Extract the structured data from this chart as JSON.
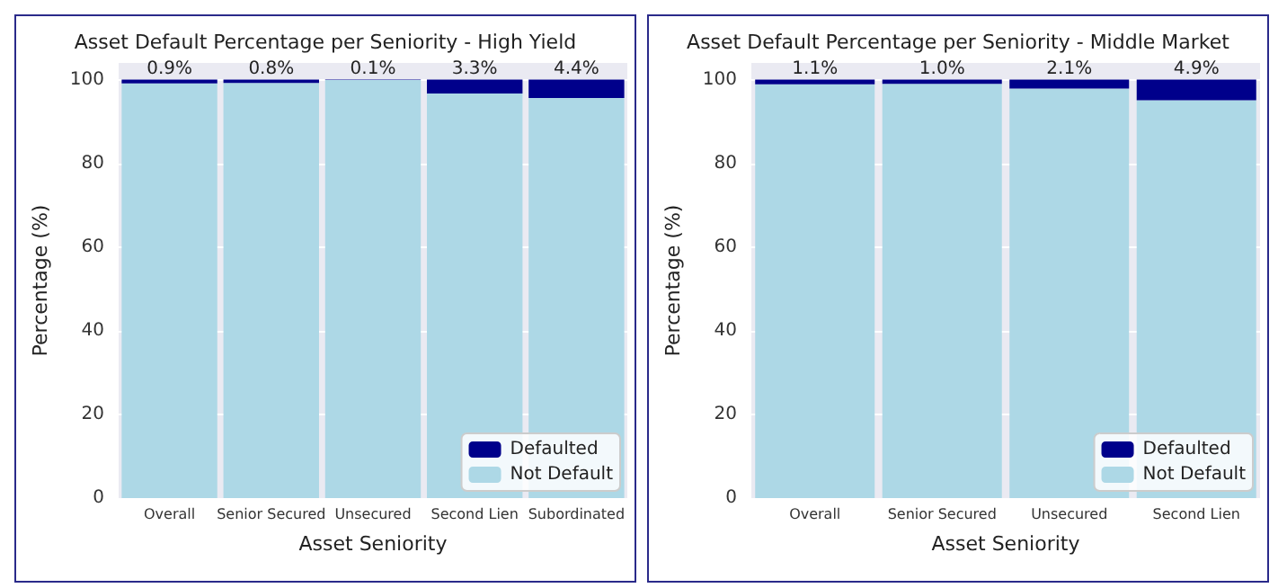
{
  "chart_data": [
    {
      "type": "bar",
      "title": "Asset Default Percentage per Seniority - High Yield",
      "xlabel": "Asset Seniority",
      "ylabel": "Percentage (%)",
      "categories": [
        "Overall",
        "Senior Secured",
        "Unsecured",
        "Second Lien",
        "Subordinated"
      ],
      "stacked": true,
      "series": [
        {
          "name": "Not Default",
          "color": "#add8e6",
          "values": [
            99.1,
            99.2,
            99.9,
            96.7,
            95.6
          ]
        },
        {
          "name": "Defaulted",
          "color": "#00008b",
          "values": [
            0.9,
            0.8,
            0.1,
            3.3,
            4.4
          ],
          "value_labels": [
            "0.9%",
            "0.8%",
            "0.1%",
            "3.3%",
            "4.4%"
          ]
        }
      ],
      "ylim": [
        0,
        104
      ],
      "yticks": [
        0,
        20,
        40,
        60,
        80,
        100
      ],
      "grid": "y",
      "legend": "bottom right"
    },
    {
      "type": "bar",
      "title": "Asset Default Percentage per Seniority - Middle Market",
      "xlabel": "Asset Seniority",
      "ylabel": "Percentage (%)",
      "categories": [
        "Overall",
        "Senior Secured",
        "Unsecured",
        "Second Lien"
      ],
      "stacked": true,
      "series": [
        {
          "name": "Not Default",
          "color": "#add8e6",
          "values": [
            98.9,
            99.0,
            97.9,
            95.1
          ]
        },
        {
          "name": "Defaulted",
          "color": "#00008b",
          "values": [
            1.1,
            1.0,
            2.1,
            4.9
          ],
          "value_labels": [
            "1.1%",
            "1.0%",
            "2.1%",
            "4.9%"
          ]
        }
      ],
      "ylim": [
        0,
        104
      ],
      "yticks": [
        0,
        20,
        40,
        60,
        80,
        100
      ],
      "grid": "y",
      "legend": "bottom right"
    }
  ]
}
